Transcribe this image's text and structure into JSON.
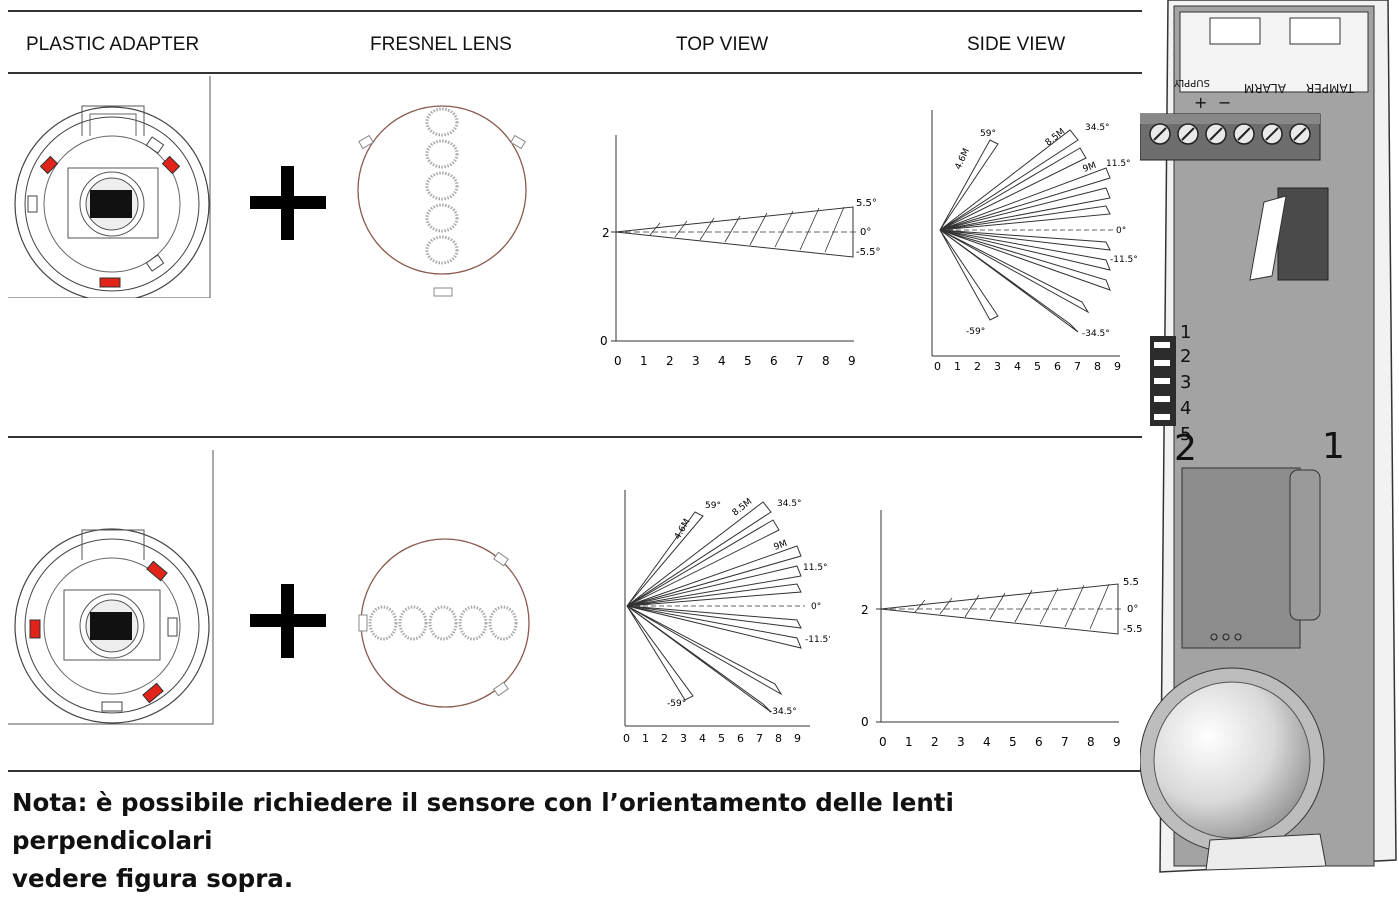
{
  "headers": {
    "plastic_adapter": "PLASTIC ADAPTER",
    "fresnel_lens": "FRESNEL LENS",
    "top_view": "TOP VIEW",
    "side_view": "SIDE VIEW"
  },
  "note": {
    "line1": "Nota: è possibile richiedere il sensore con l’orientamento delle lenti perpendicolari",
    "line2": "vedere figura sopra."
  },
  "narrow_chart": {
    "y_ticks": [
      "0",
      "2"
    ],
    "x_ticks": [
      "0",
      "1",
      "2",
      "3",
      "4",
      "5",
      "6",
      "7",
      "8",
      "9"
    ],
    "angles": [
      "5.5°",
      "0°",
      "-5.5°"
    ],
    "angles_row2": [
      "5.5",
      "0°",
      "-5.5"
    ]
  },
  "wide_chart": {
    "x_ticks": [
      "0",
      "1",
      "2",
      "3",
      "4",
      "5",
      "6",
      "7",
      "8",
      "9"
    ],
    "angles": [
      "59°",
      "34.5°",
      "11.5°",
      "0°",
      "-11.5°",
      "-34.5°",
      "-59°"
    ],
    "distances": [
      "4.6M",
      "8.5M",
      "9M"
    ]
  },
  "device": {
    "terminal_labels": [
      "SUPPLY",
      "+",
      "−",
      "ALARM",
      "TAMPER"
    ],
    "dip_numbers": [
      "1",
      "2",
      "3",
      "4",
      "5"
    ],
    "left_marker": "2",
    "right_marker": "1"
  },
  "colors": {
    "accent_red": "#e2231a",
    "line": "#333333",
    "device_gray": "#9b9b9b"
  }
}
